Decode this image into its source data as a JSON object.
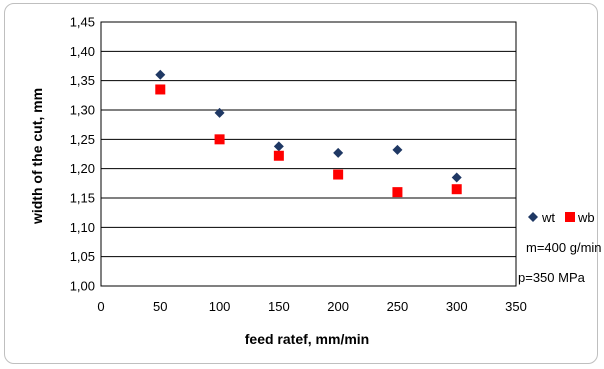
{
  "chart_data": {
    "type": "scatter",
    "title": "",
    "xlabel": "feed ratef, mm/min",
    "ylabel": "width of the cut, mm",
    "xlim": [
      0,
      350
    ],
    "ylim": [
      1.0,
      1.45
    ],
    "x_ticks": [
      "0",
      "50",
      "100",
      "150",
      "200",
      "250",
      "300",
      "350"
    ],
    "y_ticks": [
      "1,00",
      "1,05",
      "1,10",
      "1,15",
      "1,20",
      "1,25",
      "1,30",
      "1,35",
      "1,40",
      "1,45"
    ],
    "grid": "horizontal",
    "legend_position": "right",
    "series": [
      {
        "name": "wt",
        "marker": "diamond",
        "color": "#1f3864",
        "x": [
          50,
          100,
          150,
          200,
          250,
          300
        ],
        "y": [
          1.36,
          1.295,
          1.238,
          1.227,
          1.232,
          1.185
        ]
      },
      {
        "name": "wb",
        "marker": "square",
        "color": "#ff0000",
        "x": [
          50,
          100,
          150,
          200,
          250,
          300
        ],
        "y": [
          1.335,
          1.25,
          1.222,
          1.19,
          1.16,
          1.165
        ]
      }
    ],
    "annotations": [
      "m=400 g/min",
      "p=350 MPa"
    ]
  }
}
